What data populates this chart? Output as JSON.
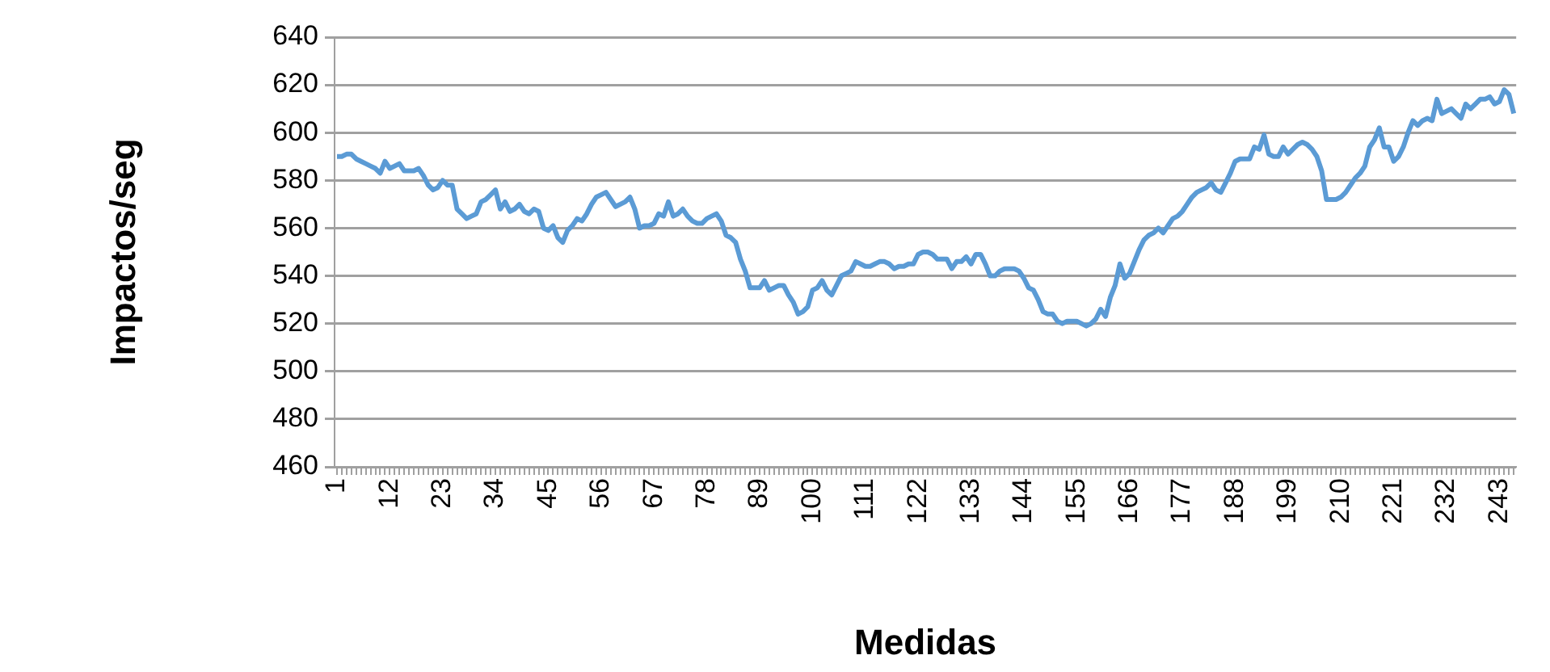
{
  "chart_data": {
    "type": "line",
    "xlabel": "Medidas",
    "ylabel": "Impactos/seg",
    "categories": [
      "1",
      null,
      null,
      null,
      null,
      null,
      null,
      null,
      null,
      null,
      null,
      "12",
      null,
      null,
      null,
      null,
      null,
      null,
      null,
      null,
      null,
      null,
      "23",
      null,
      null,
      null,
      null,
      null,
      null,
      null,
      null,
      null,
      null,
      "34",
      null,
      null,
      null,
      null,
      null,
      null,
      null,
      null,
      null,
      null,
      "45",
      null,
      null,
      null,
      null,
      null,
      null,
      null,
      null,
      null,
      null,
      "56",
      null,
      null,
      null,
      null,
      null,
      null,
      null,
      null,
      null,
      null,
      "67",
      null,
      null,
      null,
      null,
      null,
      null,
      null,
      null,
      null,
      null,
      "78",
      null,
      null,
      null,
      null,
      null,
      null,
      null,
      null,
      null,
      null,
      "89",
      null,
      null,
      null,
      null,
      null,
      null,
      null,
      null,
      null,
      null,
      "100",
      null,
      null,
      null,
      null,
      null,
      null,
      null,
      null,
      null,
      null,
      "111",
      null,
      null,
      null,
      null,
      null,
      null,
      null,
      null,
      null,
      null,
      "122",
      null,
      null,
      null,
      null,
      null,
      null,
      null,
      null,
      null,
      null,
      "133",
      null,
      null,
      null,
      null,
      null,
      null,
      null,
      null,
      null,
      null,
      "144",
      null,
      null,
      null,
      null,
      null,
      null,
      null,
      null,
      null,
      null,
      "155",
      null,
      null,
      null,
      null,
      null,
      null,
      null,
      null,
      null,
      null,
      "166",
      null,
      null,
      null,
      null,
      null,
      null,
      null,
      null,
      null,
      null,
      "177",
      null,
      null,
      null,
      null,
      null,
      null,
      null,
      null,
      null,
      null,
      "188",
      null,
      null,
      null,
      null,
      null,
      null,
      null,
      null,
      null,
      null,
      "199",
      null,
      null,
      null,
      null,
      null,
      null,
      null,
      null,
      null,
      null,
      "210",
      null,
      null,
      null,
      null,
      null,
      null,
      null,
      null,
      null,
      null,
      "221",
      null,
      null,
      null,
      null,
      null,
      null,
      null,
      null,
      null,
      null,
      "232",
      null,
      null,
      null,
      null,
      null,
      null,
      null,
      null,
      null,
      null,
      "243",
      null,
      null,
      null
    ],
    "series": [
      {
        "color": "#5b9bd5",
        "values": [
          590,
          590,
          591,
          591,
          589,
          588,
          587,
          586,
          585,
          583,
          588,
          585,
          586,
          587,
          584,
          584,
          584,
          585,
          582,
          578,
          576,
          577,
          580,
          578,
          578,
          568,
          566,
          564,
          565,
          566,
          571,
          572,
          574,
          576,
          568,
          571,
          567,
          568,
          570,
          567,
          566,
          568,
          567,
          560,
          559,
          561,
          556,
          554,
          559,
          561,
          564,
          563,
          566,
          570,
          573,
          574,
          575,
          572,
          569,
          570,
          571,
          573,
          568,
          560,
          561,
          561,
          562,
          566,
          565,
          571,
          565,
          566,
          568,
          565,
          563,
          562,
          562,
          564,
          565,
          566,
          563,
          557,
          556,
          554,
          547,
          542,
          535,
          535,
          535,
          538,
          534,
          535,
          536,
          536,
          532,
          529,
          524,
          525,
          527,
          534,
          535,
          538,
          534,
          532,
          536,
          540,
          541,
          542,
          546,
          545,
          544,
          544,
          545,
          546,
          546,
          545,
          543,
          544,
          544,
          545,
          545,
          549,
          550,
          550,
          549,
          547,
          547,
          547,
          543,
          546,
          546,
          548,
          545,
          549,
          549,
          545,
          540,
          540,
          542,
          543,
          543,
          543,
          542,
          539,
          535,
          534,
          530,
          525,
          524,
          524,
          521,
          520,
          521,
          521,
          521,
          520,
          519,
          520,
          522,
          526,
          523,
          531,
          536,
          545,
          539,
          541,
          546,
          551,
          555,
          557,
          558,
          560,
          558,
          561,
          564,
          565,
          567,
          570,
          573,
          575,
          576,
          577,
          579,
          576,
          575,
          579,
          583,
          588,
          589,
          589,
          589,
          594,
          593,
          599,
          591,
          590,
          590,
          594,
          591,
          593,
          595,
          596,
          595,
          593,
          590,
          584,
          572,
          572,
          572,
          573,
          575,
          578,
          581,
          583,
          586,
          594,
          597,
          602,
          594,
          594,
          588,
          590,
          594,
          600,
          605,
          603,
          605,
          606,
          605,
          614,
          608,
          609,
          610,
          608,
          606,
          612,
          610,
          612,
          614,
          614,
          615,
          612,
          613,
          618,
          616,
          608
        ]
      }
    ],
    "ylim": [
      460,
      640
    ],
    "yticks": [
      460,
      480,
      500,
      520,
      540,
      560,
      580,
      600,
      620,
      640
    ],
    "grid": "y",
    "legend": false,
    "marker": "none",
    "line_style": "solid"
  }
}
